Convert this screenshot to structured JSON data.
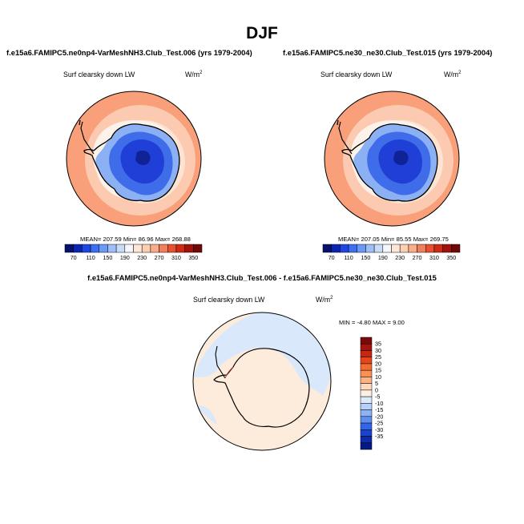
{
  "figure": {
    "season": "DJF"
  },
  "panels": [
    {
      "title": "f.e15a6.FAMIPC5.ne0np4-VarMeshNH3.Club_Test.006 (yrs 1979-2004)",
      "variable": "Surf clearsky down LW",
      "units_base": "W/m",
      "units_exp": "2",
      "stats": "MEAN= 207.59  Min=  86.96  Max= 268.88"
    },
    {
      "title": "f.e15a6.FAMIPC5.ne30_ne30.Club_Test.015 (yrs 1979-2004)",
      "variable": "Surf clearsky down LW",
      "units_base": "W/m",
      "units_exp": "2",
      "stats": "MEAN= 207.05  Min=  85.55  Max= 269.75"
    },
    {
      "title": "f.e15a6.FAMIPC5.ne0np4-VarMeshNH3.Club_Test.006 - f.e15a6.FAMIPC5.ne30_ne30.Club_Test.015",
      "variable": "Surf clearsky down LW",
      "units_base": "W/m",
      "units_exp": "2",
      "stats": "MIN =  -4.80 MAX =   9.00"
    }
  ],
  "colorbars": {
    "field": {
      "orientation": "horizontal",
      "tick_labels": [
        "70",
        "110",
        "150",
        "190",
        "230",
        "270",
        "310",
        "350"
      ],
      "colors": [
        "#06126e",
        "#0a24b4",
        "#1f45e6",
        "#3c6ff2",
        "#6c98f6",
        "#9dbef8",
        "#c8dcf8",
        "#f4f7ff",
        "#fde6d6",
        "#fccfb3",
        "#f9ad8a",
        "#f37e5c",
        "#e9502f",
        "#cf2a13",
        "#a4100a",
        "#720808"
      ]
    },
    "difference": {
      "orientation": "vertical",
      "tick_labels": [
        "35",
        "30",
        "25",
        "20",
        "15",
        "10",
        "5",
        "0",
        "-5",
        "-10",
        "-15",
        "-20",
        "-25",
        "-30",
        "-35"
      ],
      "colors": [
        "#7a0a0a",
        "#a3150e",
        "#c92612",
        "#e6461c",
        "#f36c32",
        "#f89058",
        "#fbb385",
        "#fdd9bd",
        "#fdf0e3",
        "#dbe9fb",
        "#b7d1f8",
        "#8db3f4",
        "#5e8ef0",
        "#3366e6",
        "#1a44cf",
        "#0d2ba8",
        "#061883"
      ]
    }
  },
  "map_colors": {
    "ocean_outer": "#f9a07a",
    "ocean_mid": "#fccab0",
    "ocean_inner": "#fde4d2",
    "sea_ice": "#fdf2ea",
    "land_light": "#8cb0f4",
    "land_mid": "#3f6ce9",
    "land_dark": "#1f3fd6",
    "land_core": "#0f2396",
    "diff_positive": "#fdebdc",
    "diff_negative": "#d9e8fb",
    "coast": "#000000"
  }
}
